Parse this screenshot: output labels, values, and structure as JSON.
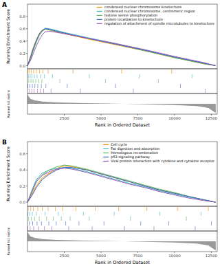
{
  "chart_data": [
    {
      "type": "line",
      "panel": "A",
      "xlabel": "Rank in Ordered Dataset",
      "ylabel": "Running Enrichment Score",
      "x": [
        0,
        200,
        400,
        600,
        800,
        1000,
        1200,
        1500,
        2500,
        4000,
        6000,
        8000,
        10000,
        11000,
        12000,
        12800
      ],
      "xlim": [
        0,
        12900
      ],
      "xticks": [
        2500,
        5000,
        7500,
        10000,
        12500
      ],
      "ylim": [
        -0.05,
        1.0
      ],
      "yticks": [
        {
          "value": 0,
          "label": "0.0"
        },
        0.2,
        0.4,
        0.6,
        0.8
      ],
      "grid": false,
      "legend": "top-right",
      "series": [
        {
          "name": "condensed nuclear chromosome kinetochore",
          "color": "#F08A00",
          "values": [
            0,
            0.15,
            0.3,
            0.42,
            0.52,
            0.58,
            0.6,
            0.58,
            0.52,
            0.44,
            0.34,
            0.24,
            0.13,
            0.08,
            0.03,
            0
          ],
          "hits": [
            40,
            130,
            260,
            420,
            610,
            820,
            1050,
            1400,
            3100,
            6400,
            9800
          ]
        },
        {
          "name": "condensed nuclear chromosome, centromeric region",
          "color": "#3CB4C8",
          "values": [
            0,
            0.12,
            0.27,
            0.4,
            0.5,
            0.57,
            0.61,
            0.6,
            0.54,
            0.46,
            0.36,
            0.25,
            0.14,
            0.09,
            0.04,
            0
          ],
          "hits": [
            60,
            180,
            300,
            470,
            650,
            900,
            1150,
            1700,
            4200,
            7600,
            11200
          ]
        },
        {
          "name": "histone serine phosphorylation",
          "color": "#5DB85C",
          "values": [
            0,
            0.1,
            0.25,
            0.38,
            0.49,
            0.56,
            0.59,
            0.58,
            0.53,
            0.45,
            0.35,
            0.24,
            0.13,
            0.08,
            0.03,
            0
          ],
          "hits": [
            90,
            240,
            380,
            560,
            760,
            980,
            2200,
            5300,
            8900
          ]
        },
        {
          "name": "protein localization to kinetochore",
          "color": "#3C64C8",
          "values": [
            0,
            0.13,
            0.28,
            0.41,
            0.51,
            0.57,
            0.6,
            0.59,
            0.53,
            0.45,
            0.35,
            0.25,
            0.14,
            0.09,
            0.04,
            0
          ],
          "hits": [
            20,
            150,
            330,
            500,
            700,
            940,
            1250,
            2700,
            6000,
            10400
          ]
        },
        {
          "name": "regulation of attachment of spindle microtubules to kinetochore",
          "color": "#9B59B6",
          "values": [
            0,
            0.08,
            0.2,
            0.32,
            0.42,
            0.5,
            0.55,
            0.56,
            0.52,
            0.45,
            0.36,
            0.26,
            0.15,
            0.1,
            0.05,
            0
          ],
          "hits": [
            110,
            290,
            450,
            680,
            870,
            1100,
            1600,
            3600,
            7200,
            12100
          ]
        }
      ],
      "metric_label": "Ranked list metric",
      "metric_x": [
        0,
        200,
        500,
        1000,
        2000,
        4000,
        6000,
        6500,
        8000,
        10000,
        11500,
        12300,
        12800
      ],
      "metric_values": [
        4,
        2.2,
        1.5,
        1.0,
        0.6,
        0.3,
        0.05,
        0,
        -0.2,
        -0.5,
        -1,
        -1.8,
        -4
      ],
      "metric_ylim": [
        -4.5,
        4.5
      ]
    },
    {
      "type": "line",
      "panel": "B",
      "xlabel": "Rank in Ordered Dataset",
      "ylabel": "Running Enrichment Score",
      "x": [
        0,
        300,
        600,
        1000,
        1500,
        2000,
        2500,
        3000,
        4000,
        5000,
        6000,
        7000,
        8000,
        9000,
        10000,
        11000,
        12000,
        12800
      ],
      "xlim": [
        0,
        12900
      ],
      "xticks": [
        2500,
        5000,
        7500,
        10000,
        12500
      ],
      "ylim": [
        -0.05,
        0.75
      ],
      "yticks": [
        {
          "value": 0,
          "label": "0.0"
        },
        0.2,
        0.4,
        0.6
      ],
      "grid": false,
      "legend": "top-right",
      "series": [
        {
          "name": "Cell cycle",
          "color": "#F08A00",
          "values": [
            0,
            0.1,
            0.2,
            0.3,
            0.36,
            0.42,
            0.45,
            0.44,
            0.4,
            0.35,
            0.3,
            0.25,
            0.2,
            0.15,
            0.11,
            0.07,
            0.03,
            0
          ],
          "hits": [
            50,
            220,
            400,
            700,
            1000,
            1400,
            1900,
            2400,
            3300,
            4600,
            6200,
            8100,
            10200,
            12300
          ]
        },
        {
          "name": "Fat digestion and absorption",
          "color": "#3CB4C8",
          "values": [
            0,
            0.15,
            0.28,
            0.36,
            0.4,
            0.42,
            0.43,
            0.42,
            0.38,
            0.33,
            0.28,
            0.23,
            0.19,
            0.14,
            0.1,
            0.06,
            0.03,
            0
          ],
          "hits": [
            30,
            150,
            330,
            600,
            1200,
            2100,
            3800,
            5900,
            9000,
            11800
          ]
        },
        {
          "name": "Homologous recombination",
          "color": "#5DB85C",
          "values": [
            0,
            0.12,
            0.25,
            0.34,
            0.4,
            0.44,
            0.46,
            0.45,
            0.41,
            0.36,
            0.31,
            0.26,
            0.21,
            0.16,
            0.12,
            0.07,
            0.03,
            0
          ],
          "hits": [
            80,
            260,
            480,
            800,
            1300,
            1750,
            2300,
            2900,
            4200,
            7000,
            10800
          ]
        },
        {
          "name": "p53 signaling pathway",
          "color": "#3C64C8",
          "values": [
            0,
            0.08,
            0.18,
            0.28,
            0.35,
            0.4,
            0.43,
            0.43,
            0.4,
            0.35,
            0.3,
            0.25,
            0.2,
            0.15,
            0.11,
            0.07,
            0.03,
            0
          ],
          "hits": [
            120,
            350,
            650,
            950,
            1450,
            1950,
            2600,
            3500,
            5200,
            7700,
            9600,
            12500
          ]
        },
        {
          "name": "Viral protein interaction with cytokine and cytokine receptor",
          "color": "#9B59B6",
          "values": [
            0,
            0.13,
            0.26,
            0.33,
            0.38,
            0.41,
            0.42,
            0.41,
            0.37,
            0.32,
            0.27,
            0.22,
            0.18,
            0.13,
            0.09,
            0.05,
            0.02,
            0
          ],
          "hits": [
            10,
            180,
            420,
            760,
            1150,
            1650,
            2800,
            4400,
            6600,
            8600,
            11400
          ]
        }
      ],
      "metric_label": "Ranked list metric",
      "metric_x": [
        0,
        200,
        500,
        1000,
        2000,
        4000,
        6000,
        6500,
        8000,
        10000,
        11500,
        12300,
        12800
      ],
      "metric_values": [
        4,
        2.2,
        1.5,
        1.0,
        0.6,
        0.3,
        0.05,
        0,
        -0.2,
        -0.5,
        -1,
        -1.8,
        -4
      ],
      "metric_ylim": [
        -4.5,
        4.5
      ]
    }
  ]
}
